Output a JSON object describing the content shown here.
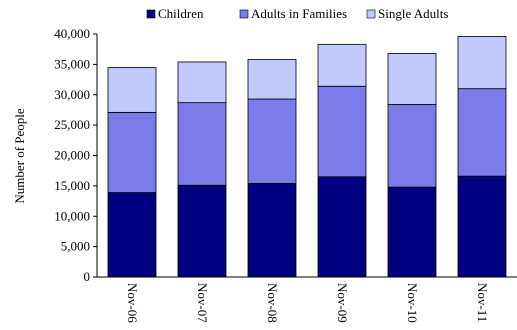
{
  "chart_data": {
    "type": "bar",
    "stacked": true,
    "categories": [
      "Nov-06",
      "Nov-07",
      "Nov-08",
      "Nov-09",
      "Nov-10",
      "Nov-11"
    ],
    "series": [
      {
        "name": "Children",
        "color": "#000080",
        "values": [
          13900,
          15100,
          15400,
          16500,
          14800,
          16600
        ]
      },
      {
        "name": "Adults in Families",
        "color": "#7B7BEA",
        "values": [
          13200,
          13600,
          13900,
          14900,
          13600,
          14400
        ]
      },
      {
        "name": "Single Adults",
        "color": "#C2C9FF",
        "values": [
          7400,
          6700,
          6500,
          6900,
          8400,
          8600
        ]
      }
    ],
    "ylabel": "Number of People",
    "ylim": [
      0,
      40000
    ],
    "yticks": [
      "0",
      "5,000",
      "10,000",
      "15,000",
      "20,000",
      "25,000",
      "30,000",
      "35,000",
      "40,000"
    ],
    "grid": false,
    "legend": "top"
  }
}
